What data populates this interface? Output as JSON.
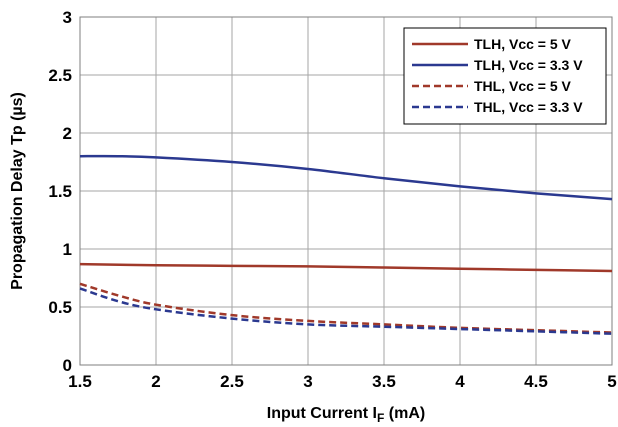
{
  "chart_data": {
    "type": "line",
    "title": "",
    "xlabel": {
      "main": "Input Current I",
      "sub": "F",
      "unit": " (mA)"
    },
    "ylabel": "Propagation Delay Tp (µs)",
    "xlim": [
      1.5,
      5
    ],
    "ylim": [
      0,
      3
    ],
    "xticks": [
      "1.5",
      "2",
      "2.5",
      "3",
      "3.5",
      "4",
      "4.5",
      "5"
    ],
    "yticks": [
      "0",
      "0.5",
      "1",
      "1.5",
      "2",
      "2.5",
      "3"
    ],
    "grid": true,
    "legend_position": "top-right",
    "series": [
      {
        "name": "TLH, Vcc = 5 V",
        "color": "#a0392a",
        "dash": false,
        "x": [
          1.5,
          2,
          2.5,
          3,
          3.5,
          4,
          4.5,
          5
        ],
        "y": [
          0.87,
          0.86,
          0.855,
          0.85,
          0.84,
          0.83,
          0.82,
          0.81
        ]
      },
      {
        "name": "TLH, Vcc = 3.3 V",
        "color": "#2b3990",
        "dash": false,
        "x": [
          1.5,
          1.75,
          2,
          2.5,
          3,
          3.5,
          4,
          4.5,
          5
        ],
        "y": [
          1.8,
          1.8,
          1.79,
          1.75,
          1.69,
          1.61,
          1.54,
          1.48,
          1.43
        ]
      },
      {
        "name": "THL, Vcc = 5 V",
        "color": "#a0392a",
        "dash": true,
        "x": [
          1.5,
          1.75,
          2,
          2.5,
          3,
          3.5,
          4,
          4.5,
          5
        ],
        "y": [
          0.7,
          0.6,
          0.52,
          0.43,
          0.38,
          0.35,
          0.32,
          0.3,
          0.28
        ]
      },
      {
        "name": "THL, Vcc = 3.3 V",
        "color": "#2b3990",
        "dash": true,
        "x": [
          1.5,
          1.75,
          2,
          2.5,
          3,
          3.5,
          4,
          4.5,
          5
        ],
        "y": [
          0.66,
          0.55,
          0.48,
          0.4,
          0.35,
          0.33,
          0.31,
          0.29,
          0.27
        ]
      }
    ]
  }
}
